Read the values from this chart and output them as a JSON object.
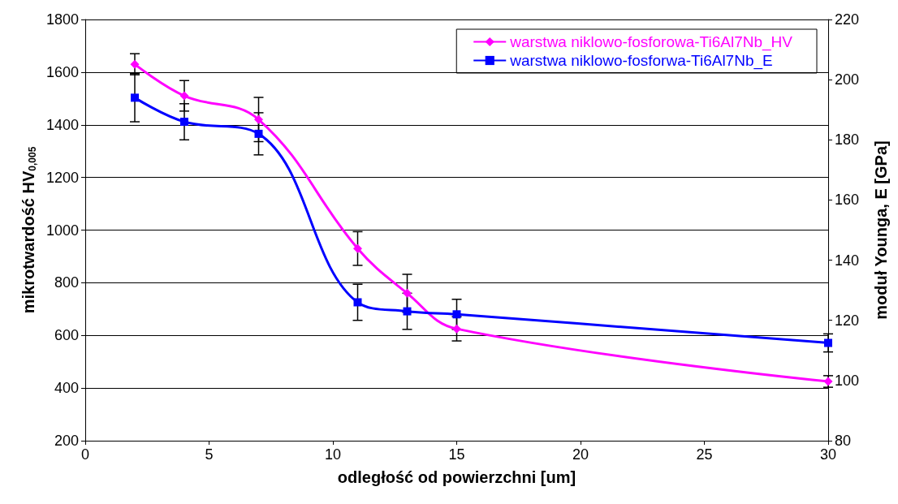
{
  "chart_data": {
    "type": "line",
    "xlabel": "odległość od powierzchni [um]",
    "ylabel": "mikrotwardość HV$_{0,005}$",
    "y2label": "moduł Younga, E [GPa]",
    "x": [
      2,
      4,
      7,
      11,
      13,
      15,
      30
    ],
    "series": [
      {
        "name": "warstwa niklowo-fosforowa-Ti6Al7Nb_HV",
        "color": "#ff00ff",
        "marker": "diamond",
        "values": [
          1630,
          1510,
          1420,
          930,
          760,
          625,
          425
        ],
        "errors": [
          40,
          58,
          84,
          64,
          72,
          46,
          22
        ]
      },
      {
        "name": "warstwa niklowo-fosforwa-Ti6Al7Nb_E",
        "color": "#0000ff",
        "marker": "square",
        "axis": "y2",
        "values": [
          194,
          186,
          182,
          126,
          123,
          122,
          112.5
        ],
        "errors": [
          8,
          6,
          7,
          6,
          6,
          5,
          3
        ]
      }
    ],
    "xlim": [
      0,
      30
    ],
    "xticks": [
      0,
      5,
      10,
      15,
      20,
      25,
      30
    ],
    "ylim": [
      200,
      1800
    ],
    "yticks": [
      200,
      400,
      600,
      800,
      1000,
      1200,
      1400,
      1600,
      1800
    ],
    "y2lim": [
      80,
      220
    ],
    "y2ticks": [
      80,
      100,
      120,
      140,
      160,
      180,
      200,
      220
    ],
    "grid": "y",
    "legend": "top right"
  }
}
